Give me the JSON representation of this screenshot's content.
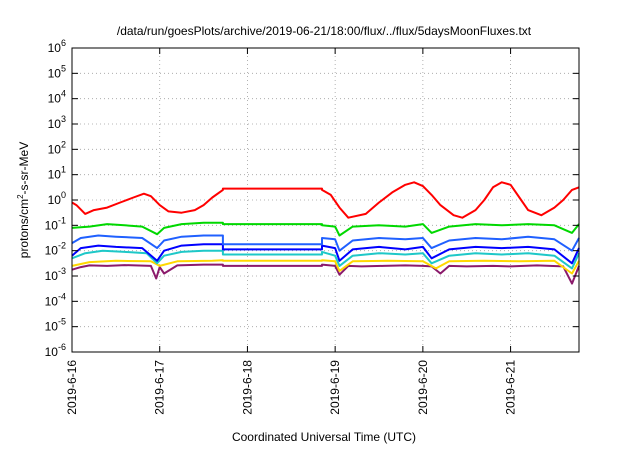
{
  "chart_data": {
    "type": "line",
    "title": "/data/run/goesPlots/archive/2019-06-21/18:00/flux/../flux/5daysMoonFluxes.txt",
    "xlabel": "Coordinated Universal Time (UTC)",
    "ylabel": {
      "pre": "protons/cm",
      "sup": "2",
      "post": "-s-sr-MeV"
    },
    "x_range_days": [
      0,
      5.78
    ],
    "x_ticks": [
      {
        "day": 0,
        "label": "2019-6-16"
      },
      {
        "day": 1,
        "label": "2019-6-17"
      },
      {
        "day": 2,
        "label": "2019-6-18"
      },
      {
        "day": 3,
        "label": "2019-6-19"
      },
      {
        "day": 4,
        "label": "2019-6-20"
      },
      {
        "day": 5,
        "label": "2019-6-21"
      }
    ],
    "y_scale": "log",
    "y_ticks": [
      {
        "exp": -6,
        "base": "10",
        "sup": "-6"
      },
      {
        "exp": -5,
        "base": "10",
        "sup": "-5"
      },
      {
        "exp": -4,
        "base": "10",
        "sup": "-4"
      },
      {
        "exp": -3,
        "base": "10",
        "sup": "-3"
      },
      {
        "exp": -2,
        "base": "10",
        "sup": "-2"
      },
      {
        "exp": -1,
        "base": "10",
        "sup": "-1"
      },
      {
        "exp": 0,
        "base": "10",
        "sup": "0"
      },
      {
        "exp": 1,
        "base": "10",
        "sup": "1"
      },
      {
        "exp": 2,
        "base": "10",
        "sup": "2"
      },
      {
        "exp": 3,
        "base": "10",
        "sup": "3"
      },
      {
        "exp": 4,
        "base": "10",
        "sup": "4"
      },
      {
        "exp": 5,
        "base": "10",
        "sup": "5"
      },
      {
        "exp": 6,
        "base": "10",
        "sup": "6"
      }
    ],
    "grid": true,
    "series": [
      {
        "color": "#8b1a6b",
        "points": [
          [
            0.0,
            -2.75
          ],
          [
            0.1,
            -2.65
          ],
          [
            0.2,
            -2.58
          ],
          [
            0.4,
            -2.6
          ],
          [
            0.6,
            -2.57
          ],
          [
            0.9,
            -2.6
          ],
          [
            0.96,
            -3.1
          ],
          [
            1.0,
            -2.65
          ],
          [
            1.05,
            -2.9
          ],
          [
            1.2,
            -2.58
          ],
          [
            1.5,
            -2.55
          ],
          [
            1.72,
            -2.55
          ],
          [
            1.72,
            -2.6
          ],
          [
            2.85,
            -2.6
          ],
          [
            2.85,
            -2.55
          ],
          [
            3.0,
            -2.6
          ],
          [
            3.05,
            -2.95
          ],
          [
            3.15,
            -2.6
          ],
          [
            3.3,
            -2.62
          ],
          [
            3.55,
            -2.6
          ],
          [
            3.8,
            -2.58
          ],
          [
            4.0,
            -2.6
          ],
          [
            4.1,
            -2.62
          ],
          [
            4.2,
            -2.9
          ],
          [
            4.3,
            -2.6
          ],
          [
            4.5,
            -2.62
          ],
          [
            4.8,
            -2.6
          ],
          [
            5.0,
            -2.62
          ],
          [
            5.3,
            -2.58
          ],
          [
            5.6,
            -2.62
          ],
          [
            5.7,
            -3.3
          ],
          [
            5.78,
            -2.6
          ]
        ]
      },
      {
        "color": "#ffd800",
        "points": [
          [
            0.0,
            -2.6
          ],
          [
            0.2,
            -2.45
          ],
          [
            0.5,
            -2.4
          ],
          [
            0.9,
            -2.42
          ],
          [
            1.0,
            -2.6
          ],
          [
            1.2,
            -2.42
          ],
          [
            1.6,
            -2.4
          ],
          [
            1.72,
            -2.38
          ],
          [
            1.72,
            -2.4
          ],
          [
            2.85,
            -2.4
          ],
          [
            2.85,
            -2.38
          ],
          [
            3.0,
            -2.42
          ],
          [
            3.05,
            -2.8
          ],
          [
            3.2,
            -2.42
          ],
          [
            3.6,
            -2.4
          ],
          [
            4.0,
            -2.42
          ],
          [
            4.15,
            -2.7
          ],
          [
            4.3,
            -2.42
          ],
          [
            4.7,
            -2.4
          ],
          [
            5.1,
            -2.42
          ],
          [
            5.5,
            -2.4
          ],
          [
            5.7,
            -2.9
          ],
          [
            5.78,
            -2.4
          ]
        ]
      },
      {
        "color": "#1ec8c8",
        "points": [
          [
            0.0,
            -2.3
          ],
          [
            0.15,
            -2.1
          ],
          [
            0.35,
            -2.0
          ],
          [
            0.6,
            -2.05
          ],
          [
            0.85,
            -2.1
          ],
          [
            0.97,
            -2.5
          ],
          [
            1.05,
            -2.2
          ],
          [
            1.25,
            -2.05
          ],
          [
            1.5,
            -2.0
          ],
          [
            1.72,
            -2.0
          ],
          [
            1.72,
            -2.15
          ],
          [
            2.85,
            -2.15
          ],
          [
            2.85,
            -2.05
          ],
          [
            3.0,
            -2.2
          ],
          [
            3.05,
            -2.6
          ],
          [
            3.2,
            -2.2
          ],
          [
            3.5,
            -2.1
          ],
          [
            3.8,
            -2.15
          ],
          [
            4.0,
            -2.1
          ],
          [
            4.1,
            -2.5
          ],
          [
            4.3,
            -2.2
          ],
          [
            4.6,
            -2.1
          ],
          [
            4.9,
            -2.15
          ],
          [
            5.2,
            -2.1
          ],
          [
            5.5,
            -2.2
          ],
          [
            5.7,
            -2.7
          ],
          [
            5.78,
            -2.1
          ]
        ]
      },
      {
        "color": "#0000ff",
        "points": [
          [
            0.0,
            -2.2
          ],
          [
            0.1,
            -1.9
          ],
          [
            0.3,
            -1.8
          ],
          [
            0.5,
            -1.85
          ],
          [
            0.8,
            -1.9
          ],
          [
            0.97,
            -2.4
          ],
          [
            1.05,
            -2.0
          ],
          [
            1.25,
            -1.8
          ],
          [
            1.5,
            -1.75
          ],
          [
            1.72,
            -1.75
          ],
          [
            1.72,
            -1.95
          ],
          [
            2.85,
            -1.95
          ],
          [
            2.85,
            -1.8
          ],
          [
            3.0,
            -1.9
          ],
          [
            3.05,
            -2.4
          ],
          [
            3.2,
            -1.95
          ],
          [
            3.5,
            -1.85
          ],
          [
            3.8,
            -1.95
          ],
          [
            4.0,
            -1.85
          ],
          [
            4.1,
            -2.3
          ],
          [
            4.3,
            -1.95
          ],
          [
            4.6,
            -1.85
          ],
          [
            4.9,
            -1.9
          ],
          [
            5.2,
            -1.85
          ],
          [
            5.5,
            -1.95
          ],
          [
            5.7,
            -2.5
          ],
          [
            5.78,
            -1.9
          ]
        ]
      },
      {
        "color": "#2060ff",
        "points": [
          [
            0.0,
            -1.7
          ],
          [
            0.1,
            -1.5
          ],
          [
            0.3,
            -1.4
          ],
          [
            0.5,
            -1.45
          ],
          [
            0.8,
            -1.5
          ],
          [
            0.97,
            -1.9
          ],
          [
            1.05,
            -1.6
          ],
          [
            1.25,
            -1.45
          ],
          [
            1.5,
            -1.4
          ],
          [
            1.72,
            -1.4
          ],
          [
            1.72,
            -1.75
          ],
          [
            2.85,
            -1.75
          ],
          [
            2.85,
            -1.5
          ],
          [
            3.0,
            -1.55
          ],
          [
            3.05,
            -2.0
          ],
          [
            3.2,
            -1.6
          ],
          [
            3.5,
            -1.5
          ],
          [
            3.8,
            -1.55
          ],
          [
            4.0,
            -1.5
          ],
          [
            4.1,
            -1.9
          ],
          [
            4.3,
            -1.6
          ],
          [
            4.6,
            -1.5
          ],
          [
            4.9,
            -1.55
          ],
          [
            5.2,
            -1.45
          ],
          [
            5.5,
            -1.55
          ],
          [
            5.7,
            -2.0
          ],
          [
            5.78,
            -1.5
          ]
        ]
      },
      {
        "color": "#00d800",
        "points": [
          [
            0.0,
            -1.1
          ],
          [
            0.2,
            -1.05
          ],
          [
            0.4,
            -0.95
          ],
          [
            0.6,
            -1.0
          ],
          [
            0.8,
            -1.05
          ],
          [
            0.97,
            -1.35
          ],
          [
            1.05,
            -1.1
          ],
          [
            1.25,
            -0.95
          ],
          [
            1.5,
            -0.9
          ],
          [
            1.72,
            -0.9
          ],
          [
            1.72,
            -0.95
          ],
          [
            2.85,
            -0.95
          ],
          [
            2.85,
            -1.0
          ],
          [
            3.0,
            -1.05
          ],
          [
            3.05,
            -1.4
          ],
          [
            3.2,
            -1.05
          ],
          [
            3.5,
            -1.0
          ],
          [
            3.8,
            -1.05
          ],
          [
            4.0,
            -0.95
          ],
          [
            4.1,
            -1.3
          ],
          [
            4.3,
            -1.05
          ],
          [
            4.6,
            -0.95
          ],
          [
            4.9,
            -1.0
          ],
          [
            5.2,
            -0.95
          ],
          [
            5.5,
            -1.0
          ],
          [
            5.7,
            -1.3
          ],
          [
            5.78,
            -0.95
          ]
        ]
      },
      {
        "color": "#ff0000",
        "points": [
          [
            0.0,
            -0.1
          ],
          [
            0.05,
            -0.2
          ],
          [
            0.15,
            -0.55
          ],
          [
            0.25,
            -0.4
          ],
          [
            0.4,
            -0.3
          ],
          [
            0.55,
            -0.1
          ],
          [
            0.7,
            0.1
          ],
          [
            0.82,
            0.25
          ],
          [
            0.9,
            0.15
          ],
          [
            1.0,
            -0.2
          ],
          [
            1.1,
            -0.45
          ],
          [
            1.25,
            -0.5
          ],
          [
            1.4,
            -0.4
          ],
          [
            1.5,
            -0.2
          ],
          [
            1.6,
            0.1
          ],
          [
            1.72,
            0.4
          ],
          [
            1.72,
            0.45
          ],
          [
            2.85,
            0.45
          ],
          [
            2.85,
            0.4
          ],
          [
            2.95,
            0.2
          ],
          [
            3.05,
            -0.3
          ],
          [
            3.15,
            -0.7
          ],
          [
            3.35,
            -0.55
          ],
          [
            3.5,
            -0.1
          ],
          [
            3.65,
            0.3
          ],
          [
            3.8,
            0.6
          ],
          [
            3.9,
            0.7
          ],
          [
            4.0,
            0.55
          ],
          [
            4.1,
            0.2
          ],
          [
            4.2,
            -0.2
          ],
          [
            4.35,
            -0.6
          ],
          [
            4.45,
            -0.7
          ],
          [
            4.6,
            -0.4
          ],
          [
            4.7,
            0.0
          ],
          [
            4.8,
            0.5
          ],
          [
            4.9,
            0.7
          ],
          [
            5.0,
            0.6
          ],
          [
            5.1,
            0.1
          ],
          [
            5.2,
            -0.4
          ],
          [
            5.35,
            -0.6
          ],
          [
            5.5,
            -0.3
          ],
          [
            5.6,
            0.0
          ],
          [
            5.7,
            0.4
          ],
          [
            5.78,
            0.5
          ]
        ]
      }
    ]
  }
}
